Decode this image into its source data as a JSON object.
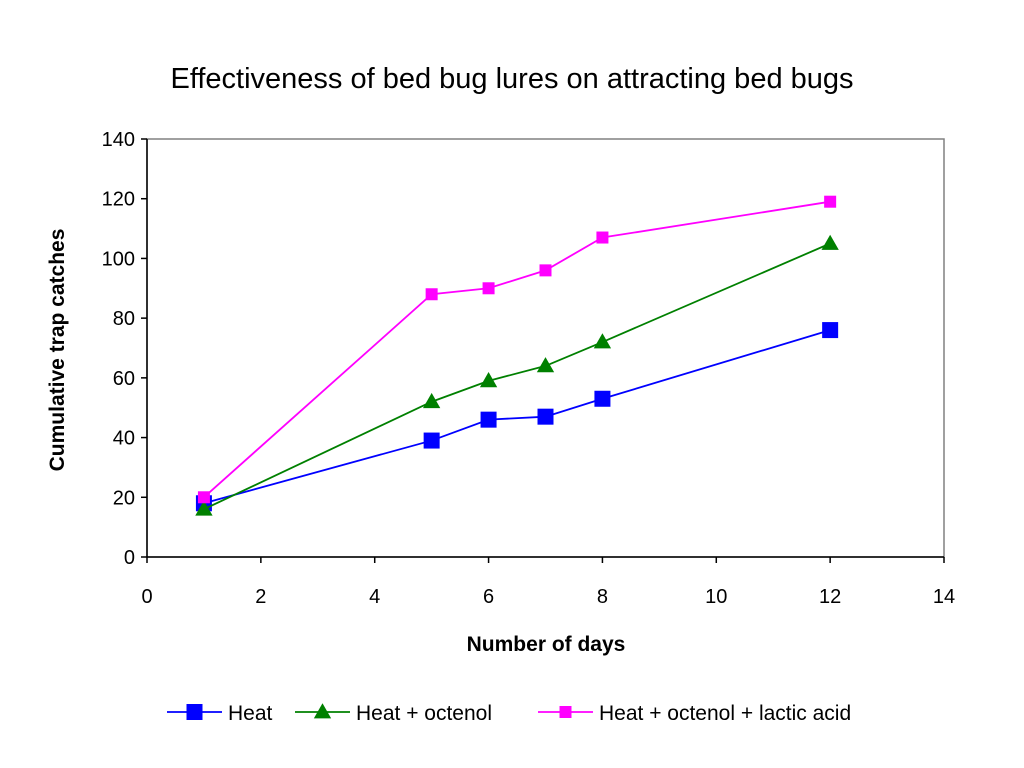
{
  "chart_data": {
    "type": "line",
    "title": "Effectiveness of bed bug lures on attracting bed bugs",
    "xlabel": "Number of days",
    "ylabel": "Cumulative trap catches",
    "xlim": [
      0,
      14
    ],
    "ylim": [
      0,
      140
    ],
    "x_ticks": [
      0,
      2,
      4,
      6,
      8,
      10,
      12,
      14
    ],
    "y_ticks": [
      0,
      20,
      40,
      60,
      80,
      100,
      120,
      140
    ],
    "grid": false,
    "legend_position": "bottom",
    "series": [
      {
        "name": "Heat",
        "color": "#0000ff",
        "marker": "square",
        "x": [
          1,
          5,
          6,
          7,
          8,
          12
        ],
        "y": [
          18,
          39,
          46,
          47,
          53,
          76
        ]
      },
      {
        "name": "Heat + octenol",
        "color": "#008000",
        "marker": "triangle",
        "x": [
          1,
          5,
          6,
          7,
          8,
          12
        ],
        "y": [
          16,
          52,
          59,
          64,
          72,
          105
        ]
      },
      {
        "name": "Heat + octenol + lactic acid",
        "color": "#ff00ff",
        "marker": "square",
        "x": [
          1,
          5,
          6,
          7,
          8,
          12
        ],
        "y": [
          20,
          88,
          90,
          96,
          107,
          119
        ]
      }
    ]
  }
}
